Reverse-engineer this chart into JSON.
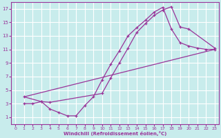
{
  "bg_color": "#c8ecec",
  "line_color": "#993399",
  "grid_color": "#ffffff",
  "xlabel": "Windchill (Refroidissement éolien,°C)",
  "xlim": [
    -0.5,
    23.5
  ],
  "ylim": [
    0,
    18
  ],
  "xticks": [
    0,
    1,
    2,
    3,
    4,
    5,
    6,
    7,
    8,
    9,
    10,
    11,
    12,
    13,
    14,
    15,
    16,
    17,
    18,
    19,
    20,
    21,
    22,
    23
  ],
  "yticks": [
    1,
    3,
    5,
    7,
    9,
    11,
    13,
    15,
    17
  ],
  "line1_x": [
    1,
    2,
    3,
    4,
    5,
    6,
    7,
    8,
    9,
    10,
    11,
    12,
    13,
    14,
    15,
    16,
    17,
    18,
    19,
    20,
    21,
    22,
    23
  ],
  "line1_y": [
    3.0,
    3.0,
    3.3,
    2.2,
    1.7,
    1.2,
    1.2,
    2.7,
    4.0,
    6.5,
    8.8,
    10.8,
    13.0,
    14.2,
    15.3,
    16.5,
    17.2,
    14.0,
    12.0,
    11.5,
    11.2,
    11.0,
    11.0
  ],
  "line2_x": [
    1,
    3,
    4,
    10,
    11,
    12,
    13,
    14,
    15,
    16,
    17,
    18,
    19,
    20,
    23
  ],
  "line2_y": [
    4.0,
    3.3,
    3.2,
    4.5,
    6.8,
    9.0,
    11.2,
    13.5,
    14.8,
    16.0,
    16.8,
    17.3,
    14.3,
    14.0,
    11.2
  ],
  "line3_x": [
    1,
    23
  ],
  "line3_y": [
    4.0,
    11.0
  ]
}
